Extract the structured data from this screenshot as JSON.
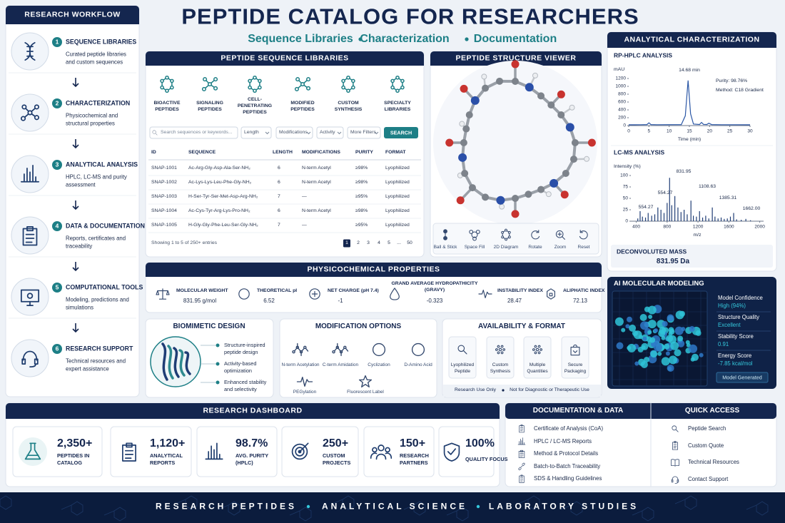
{
  "header": {
    "title": "PEPTIDE CATALOG FOR RESEARCHERS",
    "subtitle": [
      "Sequence Libraries",
      "Characterization",
      "Documentation"
    ]
  },
  "workflow": {
    "title": "RESEARCH WORKFLOW",
    "steps": [
      {
        "number": 1,
        "title": "SEQUENCE LIBRARIES",
        "description": "Curated peptide libraries and custom sequences"
      },
      {
        "number": 2,
        "title": "CHARACTERIZATION",
        "description": "Physicochemical and structural properties"
      },
      {
        "number": 3,
        "title": "ANALYTICAL ANALYSIS",
        "description": "HPLC, LC-MS and purity assessment"
      },
      {
        "number": 4,
        "title": "DATA & DOCUMENTATION",
        "description": "Reports, certificates and traceability"
      },
      {
        "number": 5,
        "title": "COMPUTATIONAL TOOLS",
        "description": "Modeling, predictions and simulations"
      },
      {
        "number": 6,
        "title": "RESEARCH SUPPORT",
        "description": "Technical resources and expert assistance"
      }
    ]
  },
  "libraries": {
    "title": "PEPTIDE SEQUENCE LIBRARIES",
    "categories": [
      "BIOACTIVE PEPTIDES",
      "SIGNALING PEPTIDES",
      "CELL-PENETRATING PEPTIDES",
      "MODIFIED PEPTIDES",
      "CUSTOM SYNTHESIS",
      "SPECIALTY LIBRARIES"
    ],
    "search_placeholder": "Search sequences or keywords...",
    "filters": [
      "Length",
      "Modifications",
      "Activity",
      "More Filters"
    ],
    "search_button": "SEARCH",
    "table": {
      "columns": [
        "ID",
        "SEQUENCE",
        "LENGTH",
        "MODIFICATIONS",
        "PURITY",
        "FORMAT"
      ],
      "rows": [
        [
          "SNAP-1001",
          "Ac-Arg-Gly-Asp-Ala-Ser-NH₂",
          6,
          "N-term Acetyl",
          "≥98%",
          "Lyophilized"
        ],
        [
          "SNAP-1002",
          "Ac-Lys-Lys-Leu-Phe-Gly-NH₂",
          6,
          "N-term Acetyl",
          "≥98%",
          "Lyophilized"
        ],
        [
          "SNAP-1003",
          "H-Ser-Tyr-Ser-Met-Asp-Arg-NH₂",
          7,
          "—",
          "≥95%",
          "Lyophilized"
        ],
        [
          "SNAP-1004",
          "Ac-Cys-Tyr-Arg-Lys-Pro-NH₂",
          6,
          "N-term Acetyl",
          "≥98%",
          "Lyophilized"
        ],
        [
          "SNAP-1005",
          "H-Gly-Gly-Phe-Leu-Ser-Gly-NH₂",
          7,
          "—",
          "≥95%",
          "Lyophilized"
        ]
      ]
    },
    "footer": "Showing 1 to 5 of 250+ entries",
    "pages": [
      "1",
      "2",
      "3",
      "4",
      "5",
      "...",
      "50"
    ]
  },
  "viewer": {
    "title": "PEPTIDE STRUCTURE VIEWER",
    "tools": [
      "Ball & Stick",
      "Space Fill",
      "2D Diagram",
      "Rotate",
      "Zoom",
      "Reset"
    ]
  },
  "analytical": {
    "title": "ANALYTICAL CHARACTERIZATION",
    "hplc": {
      "type": "line",
      "title": "RP-HPLC ANALYSIS",
      "y_label": "mAU",
      "x_label": "Time (min)",
      "x": [
        0,
        3,
        4.5,
        5,
        5.5,
        7,
        13,
        14,
        14.68,
        15.3,
        16,
        17.5,
        18,
        18.5,
        19.3,
        19.8,
        20.5,
        23,
        30
      ],
      "values": [
        20,
        22,
        25,
        70,
        25,
        22,
        25,
        250,
        1150,
        300,
        40,
        28,
        80,
        30,
        28,
        60,
        25,
        22,
        20
      ],
      "xlim": [
        0,
        30
      ],
      "ylim": [
        0,
        1200
      ],
      "xticks": [
        0,
        5,
        10,
        15,
        20,
        25,
        30
      ],
      "yticks": [
        0,
        200,
        400,
        600,
        800,
        1000,
        1200
      ],
      "annotations": [
        "14.68 min",
        "Purity: 98.76%",
        "Method: C18 Gradient"
      ]
    },
    "lcms": {
      "type": "bar",
      "title": "LC-MS ANALYSIS",
      "y_label": "Intensity (%)",
      "x_label": "m/z",
      "x": [
        420,
        450,
        480,
        520,
        554.27,
        600,
        640,
        680,
        720,
        760,
        800,
        831.95,
        860,
        900,
        940,
        980,
        1020,
        1060,
        1108.63,
        1140,
        1180,
        1220,
        1260,
        1300,
        1340,
        1385.31,
        1420,
        1460,
        1500,
        1540,
        1580,
        1620,
        1662,
        1700,
        1760,
        1820,
        1880
      ],
      "values": [
        6,
        22,
        10,
        8,
        18,
        12,
        15,
        30,
        25,
        18,
        40,
        95,
        35,
        55,
        30,
        20,
        25,
        15,
        45,
        12,
        10,
        22,
        8,
        12,
        6,
        30,
        10,
        6,
        8,
        5,
        6,
        10,
        18,
        4,
        3,
        5,
        2
      ],
      "xlim": [
        330,
        2050
      ],
      "ylim": [
        0,
        100
      ],
      "xticks": [
        400,
        800,
        1200,
        1600,
        2000
      ],
      "yticks": [
        0,
        25,
        50,
        75,
        100
      ],
      "annotations": [
        "831.95",
        "554.27",
        "1108.63",
        "554.27",
        "1385.31",
        "1662.00"
      ]
    },
    "deconvoluted_mass": {
      "label": "DECONVOLUTED MASS",
      "value": "831.95 Da"
    }
  },
  "ai_modeling": {
    "title": "AI MOLECULAR MODELING",
    "metrics": [
      {
        "label": "Model Confidence",
        "value": "High (94%)"
      },
      {
        "label": "Structure Quality",
        "value": "Excellent"
      },
      {
        "label": "Stability Score",
        "value": "0.91"
      },
      {
        "label": "Energy Score",
        "value": "-7.85 kcal/mol"
      }
    ],
    "status": "Model Generated"
  },
  "properties": {
    "title": "PHYSICOCHEMICAL PROPERTIES",
    "items": [
      {
        "label": "MOLECULAR WEIGHT",
        "value": "831.95 g/mol"
      },
      {
        "label": "THEORETICAL pI",
        "value": "6.52"
      },
      {
        "label": "NET CHARGE (pH 7.4)",
        "value": "-1"
      },
      {
        "label": "GRAND AVERAGE HYDROPATHICITY (GRAVY)",
        "value": "-0.323"
      },
      {
        "label": "INSTABILITY INDEX",
        "value": "28.47"
      },
      {
        "label": "ALIPHATIC INDEX",
        "value": "72.13"
      }
    ]
  },
  "biomimetic": {
    "title": "BIOMIMETIC DESIGN",
    "points": [
      "Structure-inspired peptide design",
      "Activity-based optimization",
      "Enhanced stability and selectivity"
    ]
  },
  "modifications": {
    "title": "MODIFICATION OPTIONS",
    "options": [
      "N-term Acetylation",
      "C-term Amidation",
      "Cyclization",
      "D-Amino Acid",
      "PEGylation",
      "Fluorescent Label"
    ]
  },
  "availability": {
    "title": "AVAILABILITY & FORMAT",
    "formats": [
      "Lyophilized Peptide",
      "Custom Synthesis",
      "Multiple Quantities",
      "Secure Packaging"
    ],
    "notices": [
      "Research Use Only",
      "Not for Diagnostic or Therapeutic Use"
    ]
  },
  "dashboard": {
    "title": "RESEARCH DASHBOARD",
    "stats": [
      {
        "value": "2,350+",
        "label": "PEPTIDES IN CATALOG"
      },
      {
        "value": "1,120+",
        "label": "ANALYTICAL REPORTS"
      },
      {
        "value": "98.7%",
        "label": "AVG. PURITY (HPLC)"
      },
      {
        "value": "250+",
        "label": "CUSTOM PROJECTS"
      },
      {
        "value": "150+",
        "label": "RESEARCH PARTNERS"
      },
      {
        "value": "100%",
        "label": "QUALITY FOCUS"
      }
    ]
  },
  "documentation": {
    "title": "DOCUMENTATION & DATA",
    "items": [
      "Certificate of Analysis (CoA)",
      "HPLC / LC-MS Reports",
      "Method & Protocol Details",
      "Batch-to-Batch Traceability",
      "SDS & Handling Guidelines"
    ]
  },
  "quick_access": {
    "title": "QUICK ACCESS",
    "links": [
      "Peptide Search",
      "Custom Quote",
      "Technical Resources",
      "Contact Support"
    ]
  },
  "footer": [
    "RESEARCH PEPTIDES",
    "ANALYTICAL SCIENCE",
    "LABORATORY STUDIES"
  ]
}
